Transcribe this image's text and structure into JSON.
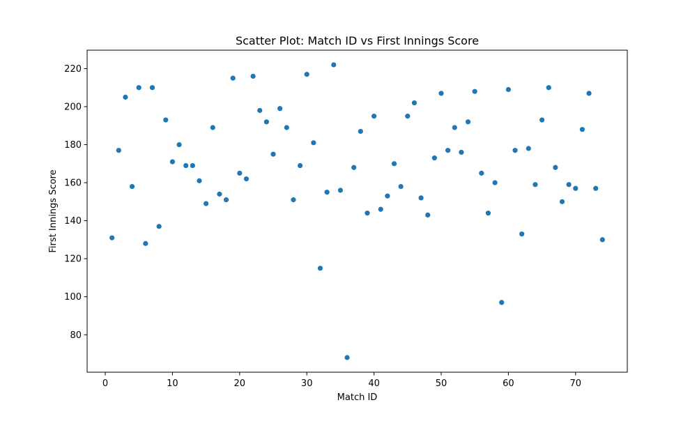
{
  "chart_data": {
    "type": "scatter",
    "title": "Scatter Plot: Match ID vs First Innings Score",
    "xlabel": "Match ID",
    "ylabel": "First Innings Score",
    "xlim": [
      -2.7,
      77.7
    ],
    "ylim": [
      60.3,
      229.7
    ],
    "xticks": [
      0,
      10,
      20,
      30,
      40,
      50,
      60,
      70
    ],
    "yticks": [
      80,
      100,
      120,
      140,
      160,
      180,
      200,
      220
    ],
    "grid": false,
    "legend": "none",
    "marker_color": "#1f77b4",
    "points": [
      {
        "x": 1,
        "y": 131
      },
      {
        "x": 2,
        "y": 177
      },
      {
        "x": 3,
        "y": 205
      },
      {
        "x": 4,
        "y": 158
      },
      {
        "x": 5,
        "y": 210
      },
      {
        "x": 6,
        "y": 128
      },
      {
        "x": 7,
        "y": 210
      },
      {
        "x": 8,
        "y": 137
      },
      {
        "x": 9,
        "y": 193
      },
      {
        "x": 10,
        "y": 171
      },
      {
        "x": 11,
        "y": 180
      },
      {
        "x": 12,
        "y": 169
      },
      {
        "x": 13,
        "y": 169
      },
      {
        "x": 14,
        "y": 161
      },
      {
        "x": 15,
        "y": 149
      },
      {
        "x": 16,
        "y": 189
      },
      {
        "x": 17,
        "y": 154
      },
      {
        "x": 18,
        "y": 151
      },
      {
        "x": 19,
        "y": 215
      },
      {
        "x": 20,
        "y": 165
      },
      {
        "x": 21,
        "y": 162
      },
      {
        "x": 22,
        "y": 216
      },
      {
        "x": 23,
        "y": 198
      },
      {
        "x": 24,
        "y": 192
      },
      {
        "x": 25,
        "y": 175
      },
      {
        "x": 26,
        "y": 199
      },
      {
        "x": 27,
        "y": 189
      },
      {
        "x": 28,
        "y": 151
      },
      {
        "x": 29,
        "y": 169
      },
      {
        "x": 30,
        "y": 217
      },
      {
        "x": 31,
        "y": 181
      },
      {
        "x": 32,
        "y": 115
      },
      {
        "x": 33,
        "y": 155
      },
      {
        "x": 34,
        "y": 222
      },
      {
        "x": 35,
        "y": 156
      },
      {
        "x": 36,
        "y": 68
      },
      {
        "x": 37,
        "y": 168
      },
      {
        "x": 38,
        "y": 187
      },
      {
        "x": 39,
        "y": 144
      },
      {
        "x": 40,
        "y": 195
      },
      {
        "x": 41,
        "y": 146
      },
      {
        "x": 42,
        "y": 153
      },
      {
        "x": 43,
        "y": 170
      },
      {
        "x": 44,
        "y": 158
      },
      {
        "x": 45,
        "y": 195
      },
      {
        "x": 46,
        "y": 202
      },
      {
        "x": 47,
        "y": 152
      },
      {
        "x": 48,
        "y": 143
      },
      {
        "x": 49,
        "y": 173
      },
      {
        "x": 50,
        "y": 207
      },
      {
        "x": 51,
        "y": 177
      },
      {
        "x": 52,
        "y": 189
      },
      {
        "x": 53,
        "y": 176
      },
      {
        "x": 54,
        "y": 192
      },
      {
        "x": 55,
        "y": 208
      },
      {
        "x": 56,
        "y": 165
      },
      {
        "x": 57,
        "y": 144
      },
      {
        "x": 58,
        "y": 160
      },
      {
        "x": 59,
        "y": 97
      },
      {
        "x": 60,
        "y": 209
      },
      {
        "x": 61,
        "y": 177
      },
      {
        "x": 62,
        "y": 133
      },
      {
        "x": 63,
        "y": 178
      },
      {
        "x": 64,
        "y": 159
      },
      {
        "x": 65,
        "y": 193
      },
      {
        "x": 66,
        "y": 210
      },
      {
        "x": 67,
        "y": 168
      },
      {
        "x": 68,
        "y": 150
      },
      {
        "x": 69,
        "y": 159
      },
      {
        "x": 70,
        "y": 157
      },
      {
        "x": 71,
        "y": 188
      },
      {
        "x": 72,
        "y": 207
      },
      {
        "x": 73,
        "y": 157
      },
      {
        "x": 74,
        "y": 130
      }
    ]
  }
}
